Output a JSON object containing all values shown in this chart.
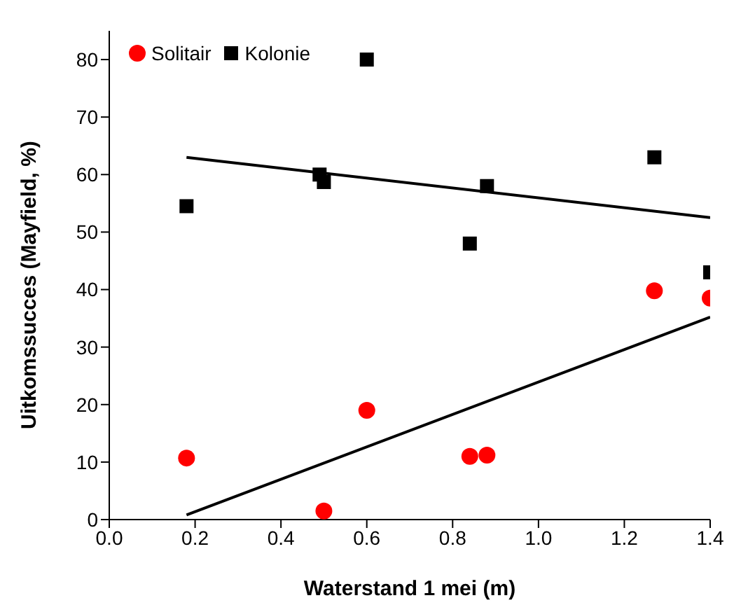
{
  "chart_data": {
    "type": "scatter",
    "xlabel": "Waterstand 1 mei (m)",
    "ylabel": "Uitkomssucces (Mayfield, %)",
    "xlim": [
      0,
      1.4
    ],
    "xticks": [
      {
        "value": 0,
        "label": "0.0"
      },
      {
        "value": 0.2,
        "label": "0.2"
      },
      {
        "value": 0.4,
        "label": "0.4"
      },
      {
        "value": 0.6,
        "label": "0.6"
      },
      {
        "value": 0.8,
        "label": "0.8"
      },
      {
        "value": 1,
        "label": "1.0"
      },
      {
        "value": 1.2,
        "label": "1.2"
      },
      {
        "value": 1.4,
        "label": "1.4"
      }
    ],
    "ylim": [
      0,
      85
    ],
    "yticks": [
      0,
      10,
      20,
      30,
      40,
      50,
      60,
      70,
      80
    ],
    "grid": false,
    "legend": "top left",
    "series": [
      {
        "name": "Solitair",
        "marker": "circle",
        "color": "#ff0000",
        "x": [
          0.18,
          0.5,
          0.6,
          0.84,
          0.88,
          1.27,
          1.4
        ],
        "values": [
          10.7,
          1.5,
          19,
          11,
          11.2,
          39.8,
          38.5
        ]
      },
      {
        "name": "Kolonie",
        "marker": "square",
        "color": "#000000",
        "x": [
          0.18,
          0.49,
          0.5,
          0.6,
          0.84,
          0.88,
          1.27,
          1.4
        ],
        "values": [
          54.5,
          60,
          58.7,
          80,
          48,
          58,
          63,
          43
        ]
      },
      {
        "type": "line",
        "color": "#000000",
        "marker": "none",
        "line_style": "solid",
        "x": [
          0.18,
          1.4
        ],
        "values": [
          0.8,
          35.2
        ]
      },
      {
        "type": "line",
        "color": "#000000",
        "marker": "none",
        "line_style": "solid",
        "x": [
          0.18,
          1.4
        ],
        "values": [
          63,
          52.5
        ]
      }
    ]
  }
}
